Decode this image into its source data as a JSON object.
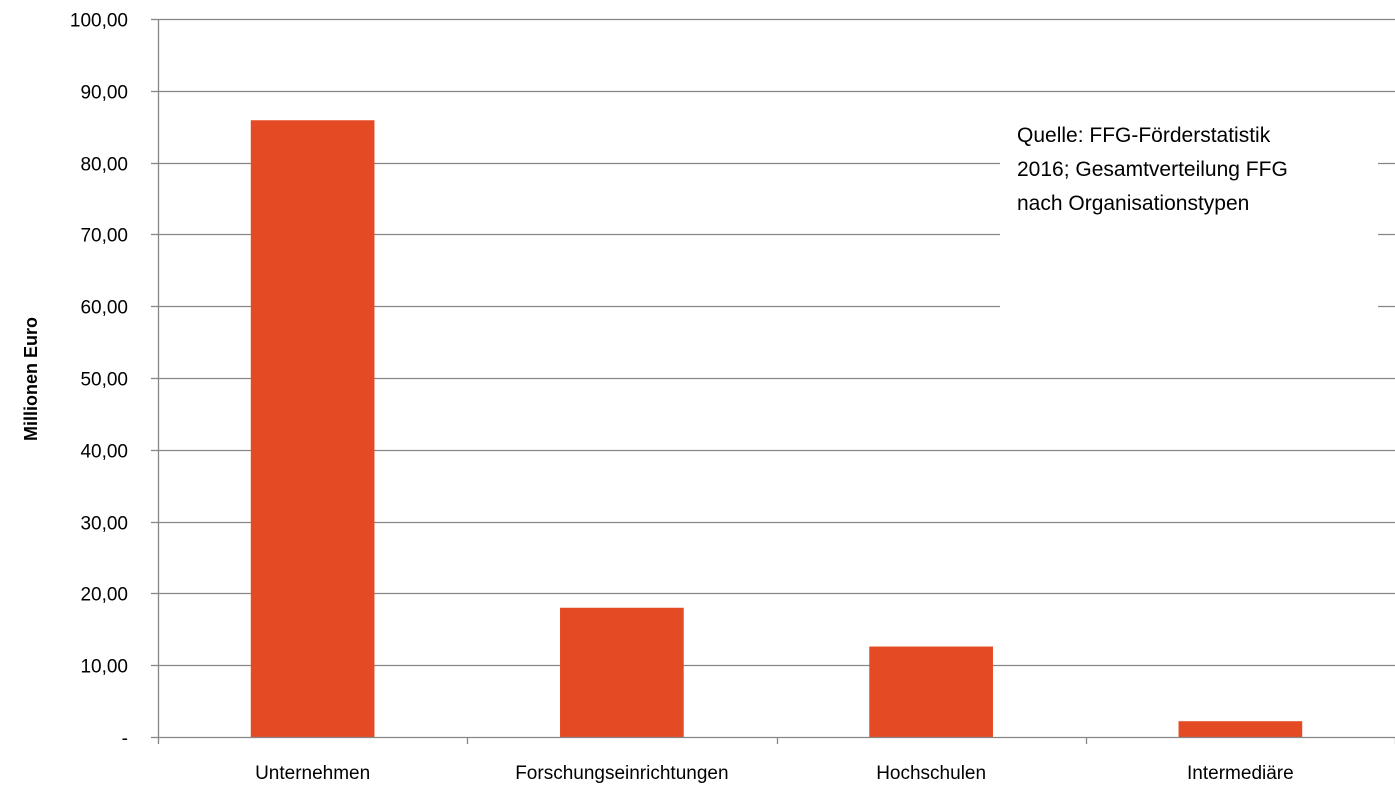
{
  "chart_data": {
    "type": "bar",
    "categories": [
      "Unternehmen",
      "Forschungseinrichtungen",
      "Hochschulen",
      "Intermediäre"
    ],
    "values": [
      85.9,
      18.0,
      12.6,
      2.2
    ],
    "ylabel": "Millionen Euro",
    "xlabel": "",
    "ylim": [
      0,
      100
    ],
    "y_ticks": [
      0,
      10,
      20,
      30,
      40,
      50,
      60,
      70,
      80,
      90,
      100
    ],
    "y_tick_labels": [
      "-",
      "10,00",
      "20,00",
      "30,00",
      "40,00",
      "50,00",
      "60,00",
      "70,00",
      "80,00",
      "90,00",
      "100,00"
    ],
    "grid": true,
    "bar_color": "#e44b25",
    "grid_color": "#868686",
    "annotation": {
      "lines": [
        "Quelle: FFG-Förderstatistik",
        "2016; Gesamtverteilung FFG",
        "nach Organisationstypen"
      ],
      "placement": "top-right"
    }
  }
}
